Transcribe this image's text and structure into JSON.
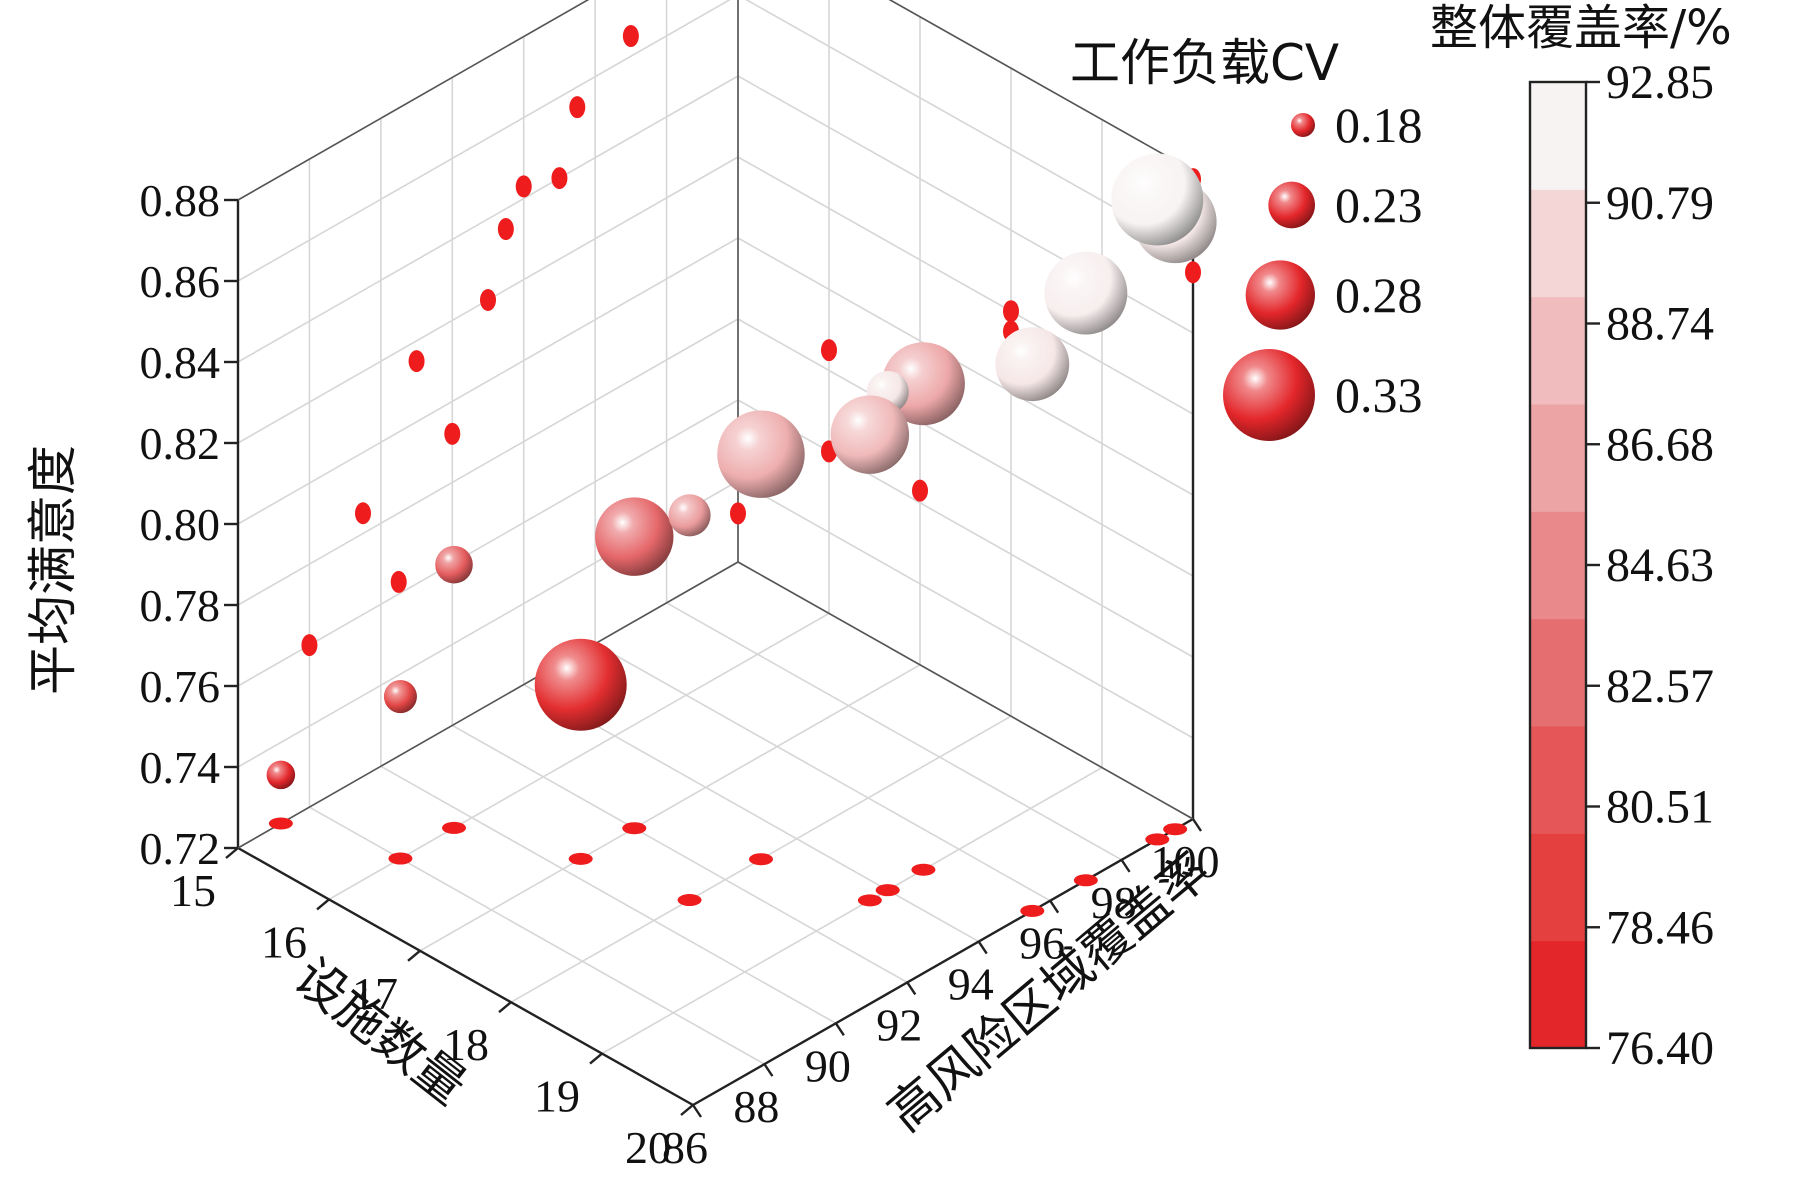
{
  "chart_data": {
    "type": "scatter3d",
    "x_axis": {
      "label": "设施数量",
      "range": [
        15,
        20
      ],
      "ticks": [
        "15",
        "16",
        "17",
        "18",
        "19",
        "20"
      ]
    },
    "y_axis": {
      "label": "高风险区域覆盖率",
      "range": [
        86,
        100
      ],
      "ticks": [
        "86",
        "88",
        "90",
        "92",
        "94",
        "96",
        "98",
        "100"
      ]
    },
    "z_axis": {
      "label": "平均满意度",
      "range": [
        0.72,
        0.88
      ],
      "ticks": [
        "0.72",
        "0.74",
        "0.76",
        "0.78",
        "0.80",
        "0.82",
        "0.84",
        "0.86",
        "0.88"
      ]
    },
    "size_legend": {
      "title": "工作负载CV",
      "items": [
        {
          "label": "0.18",
          "value": 0.18
        },
        {
          "label": "0.23",
          "value": 0.23
        },
        {
          "label": "0.28",
          "value": 0.28
        },
        {
          "label": "0.33",
          "value": 0.33
        }
      ]
    },
    "color_scale": {
      "title": "整体覆盖率/%",
      "ticks": [
        "76.40",
        "78.46",
        "80.51",
        "82.57",
        "84.63",
        "86.68",
        "88.74",
        "90.79",
        "92.85"
      ],
      "min": 76.4,
      "max": 92.85,
      "colors": [
        "#e3262a",
        "#e3403f",
        "#e45658",
        "#e56e71",
        "#e9898b",
        "#eca4a5",
        "#f0bcbd",
        "#f4d6d6",
        "#f8f3f3"
      ]
    },
    "grid": true,
    "projections": {
      "color": "#ee1c1c",
      "planes": [
        "back-left",
        "back-right",
        "floor"
      ]
    },
    "points": [
      {
        "facilities": 15,
        "high_risk_coverage": 87.2,
        "satisfaction": 0.732,
        "cv": 0.19,
        "overall_coverage": 76.5
      },
      {
        "facilities": 16,
        "high_risk_coverage": 88.0,
        "satisfaction": 0.76,
        "cv": 0.2,
        "overall_coverage": 79.0
      },
      {
        "facilities": 16,
        "high_risk_coverage": 89.5,
        "satisfaction": 0.785,
        "cv": 0.21,
        "overall_coverage": 81.0
      },
      {
        "facilities": 17,
        "high_risk_coverage": 90.5,
        "satisfaction": 0.763,
        "cv": 0.33,
        "overall_coverage": 77.0
      },
      {
        "facilities": 17,
        "high_risk_coverage": 92.0,
        "satisfaction": 0.792,
        "cv": 0.3,
        "overall_coverage": 82.0
      },
      {
        "facilities": 18,
        "high_risk_coverage": 91.0,
        "satisfaction": 0.815,
        "cv": 0.22,
        "overall_coverage": 86.0
      },
      {
        "facilities": 18,
        "high_risk_coverage": 93.0,
        "satisfaction": 0.82,
        "cv": 0.32,
        "overall_coverage": 87.5
      },
      {
        "facilities": 19,
        "high_risk_coverage": 93.5,
        "satisfaction": 0.835,
        "cv": 0.3,
        "overall_coverage": 88.5
      },
      {
        "facilities": 19,
        "high_risk_coverage": 95.0,
        "satisfaction": 0.84,
        "cv": 0.31,
        "overall_coverage": 87.0
      },
      {
        "facilities": 19,
        "high_risk_coverage": 94.0,
        "satisfaction": 0.843,
        "cv": 0.22,
        "overall_coverage": 92.0
      },
      {
        "facilities": 20,
        "high_risk_coverage": 95.5,
        "satisfaction": 0.855,
        "cv": 0.29,
        "overall_coverage": 92.0
      },
      {
        "facilities": 20,
        "high_risk_coverage": 97.0,
        "satisfaction": 0.865,
        "cv": 0.31,
        "overall_coverage": 92.5
      },
      {
        "facilities": 20,
        "high_risk_coverage": 99.5,
        "satisfaction": 0.87,
        "cv": 0.31,
        "overall_coverage": 92.2
      },
      {
        "facilities": 20,
        "high_risk_coverage": 99.0,
        "satisfaction": 0.878,
        "cv": 0.33,
        "overall_coverage": 92.85
      }
    ]
  }
}
